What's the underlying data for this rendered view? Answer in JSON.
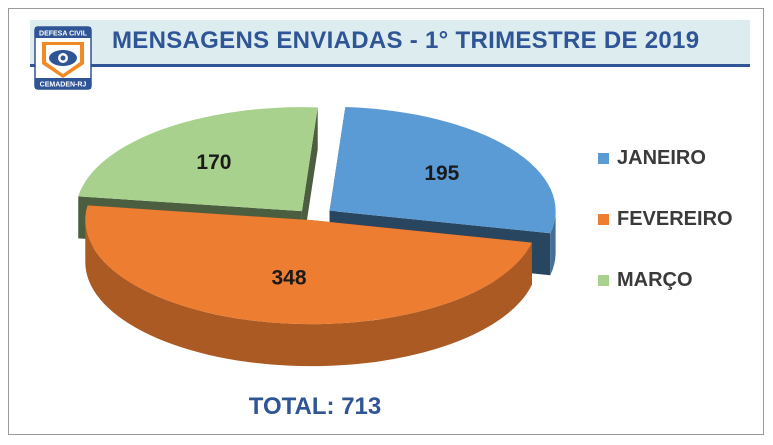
{
  "header": {
    "title": "MENSAGENS ENVIADAS - 1° TRIMESTRE DE 2019",
    "logo_text_top": "DEFESA CIVIL",
    "logo_text_bottom": "CEMADEN-RJ"
  },
  "total_label": "TOTAL: 713",
  "colors": {
    "janeiro": "#5b9bd5",
    "fevereiro": "#ed7d31",
    "marco": "#a9d18e",
    "title": "#2f5596"
  },
  "chart_data": {
    "type": "pie",
    "style": "3d-exploded",
    "title": "MENSAGENS ENVIADAS - 1° TRIMESTRE DE 2019",
    "categories": [
      "JANEIRO",
      "FEVEREIRO",
      "MARÇO"
    ],
    "values": [
      195,
      348,
      170
    ],
    "data_labels": [
      "195",
      "348",
      "170"
    ],
    "legend_position": "right"
  }
}
